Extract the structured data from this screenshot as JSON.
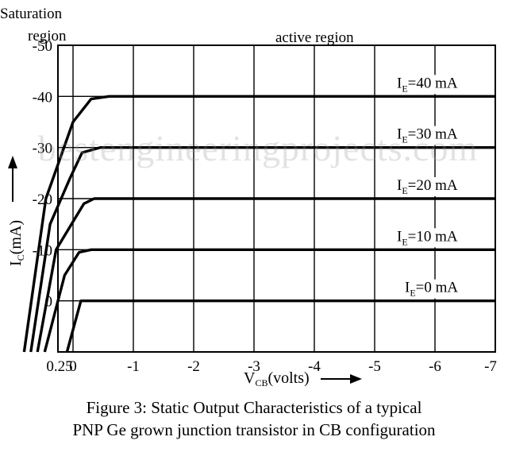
{
  "watermark": "bestengineeringprojects.com",
  "annotations": {
    "saturation_line1": "Saturation",
    "saturation_line2": "region",
    "active": "active region"
  },
  "caption": {
    "line1": "Figure 3: Static Output Characteristics of a typical",
    "line2": "PNP Ge grown junction transistor in CB configuration"
  },
  "chart_data": {
    "type": "line",
    "title": "",
    "xlabel": "V",
    "xlabel_sub": "CB",
    "xlabel_unit": "(volts)",
    "ylabel": "I",
    "ylabel_sub": "C",
    "ylabel_unit": "(mA)",
    "x_ticks": [
      0.25,
      0,
      -1,
      -2,
      -3,
      -4,
      -5,
      -6,
      -7
    ],
    "x_tick_labels": [
      "0.25",
      "0",
      "-1",
      "-2",
      "-3",
      "-4",
      "-5",
      "-6",
      "-7"
    ],
    "y_ticks": [
      -50,
      -40,
      -30,
      -20,
      -10,
      0
    ],
    "y_tick_labels": [
      "-50",
      "-40",
      "-30",
      "-20",
      "-10",
      "0"
    ],
    "xlim": [
      0.25,
      -7
    ],
    "ylim": [
      10,
      -50
    ],
    "grid": true,
    "series": [
      {
        "name_main": "I",
        "name_sub": "E",
        "name_rest": "=40 mA",
        "level": -40,
        "points": [
          [
            0.81,
            10
          ],
          [
            0.45,
            -20
          ],
          [
            0.0,
            -35
          ],
          [
            -0.3,
            -39.5
          ],
          [
            -0.6,
            -40
          ],
          [
            -7,
            -40
          ]
        ]
      },
      {
        "name_main": "I",
        "name_sub": "E",
        "name_rest": "=30 mA",
        "level": -30,
        "points": [
          [
            0.7,
            10
          ],
          [
            0.38,
            -15
          ],
          [
            0.05,
            -24
          ],
          [
            -0.15,
            -29
          ],
          [
            -0.45,
            -30
          ],
          [
            -7,
            -30
          ]
        ]
      },
      {
        "name_main": "I",
        "name_sub": "E",
        "name_rest": "=20 mA",
        "level": -20,
        "points": [
          [
            0.59,
            10
          ],
          [
            0.28,
            -10
          ],
          [
            -0.18,
            -19
          ],
          [
            -0.35,
            -20
          ],
          [
            -7,
            -20
          ]
        ]
      },
      {
        "name_main": "I",
        "name_sub": "E",
        "name_rest": "=10 mA",
        "level": -10,
        "points": [
          [
            0.47,
            10
          ],
          [
            0.14,
            -5
          ],
          [
            -0.1,
            -9.5
          ],
          [
            -0.3,
            -10
          ],
          [
            -7,
            -10
          ]
        ]
      },
      {
        "name_main": "I",
        "name_sub": "E",
        "name_rest": "=0 mA",
        "level": 0,
        "points": [
          [
            0.1,
            10
          ],
          [
            -0.13,
            0
          ],
          [
            -0.3,
            0
          ],
          [
            -7,
            0
          ]
        ]
      }
    ]
  }
}
